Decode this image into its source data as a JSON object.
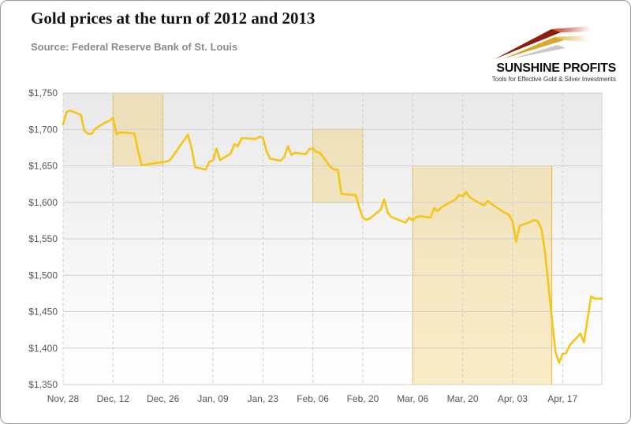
{
  "header": {
    "title": "Gold prices at the turn of 2012 and 2013",
    "subtitle": "Source: Federal Reserve Bank of St. Louis"
  },
  "logo": {
    "name": "SUNSHINE PROFITS",
    "tagline": "Tools for Effective Gold & Silver Investments"
  },
  "colors": {
    "line": "#F5C518",
    "highlight_fill": "#F2CD6A",
    "highlight_border": "#E9B92B",
    "grid": "#CFCFCF",
    "axis_text": "#555555"
  },
  "chart_data": {
    "type": "line",
    "title": "Gold prices at the turn of 2012 and 2013",
    "subtitle": "Source: Federal Reserve Bank of St. Louis",
    "xlabel": "",
    "ylabel": "",
    "ylim": [
      1350,
      1750
    ],
    "yticks": [
      1350,
      1400,
      1450,
      1500,
      1550,
      1600,
      1650,
      1700,
      1750
    ],
    "ytick_labels": [
      "$1,350",
      "$1,400",
      "$1,450",
      "$1,500",
      "$1,550",
      "$1,600",
      "$1,650",
      "$1,700",
      "$1,750"
    ],
    "xlim": [
      "2012-11-28",
      "2013-04-28"
    ],
    "xticks": [
      "2012-11-28",
      "2012-12-12",
      "2012-12-26",
      "2013-01-09",
      "2013-01-23",
      "2013-02-06",
      "2013-02-20",
      "2013-03-06",
      "2013-03-20",
      "2013-04-03",
      "2013-04-17"
    ],
    "xtick_labels": [
      "Nov, 28",
      "Dec, 12",
      "Dec, 26",
      "Jan, 09",
      "Jan, 23",
      "Feb, 06",
      "Feb, 20",
      "Mar, 06",
      "Mar, 20",
      "Apr, 03",
      "Apr, 17"
    ],
    "grid": true,
    "legend": "none",
    "highlights": [
      {
        "x_start": "2012-12-12",
        "x_end": "2012-12-26",
        "y_low": 1650,
        "y_high": 1750
      },
      {
        "x_start": "2013-02-06",
        "x_end": "2013-02-20",
        "y_low": 1600,
        "y_high": 1700
      },
      {
        "x_start": "2013-03-06",
        "x_end": "2013-04-14",
        "y_low": 1350,
        "y_high": 1650
      }
    ],
    "series": [
      {
        "points": [
          [
            "2012-11-28",
            1707
          ],
          [
            "2012-11-29",
            1724
          ],
          [
            "2012-11-30",
            1726
          ],
          [
            "2012-12-03",
            1720
          ],
          [
            "2012-12-04",
            1698
          ],
          [
            "2012-12-05",
            1694
          ],
          [
            "2012-12-06",
            1694
          ],
          [
            "2012-12-07",
            1701
          ],
          [
            "2012-12-10",
            1710
          ],
          [
            "2012-12-11",
            1712
          ],
          [
            "2012-12-12",
            1716
          ],
          [
            "2012-12-13",
            1693
          ],
          [
            "2012-12-14",
            1696
          ],
          [
            "2012-12-17",
            1695
          ],
          [
            "2012-12-18",
            1694
          ],
          [
            "2012-12-19",
            1671
          ],
          [
            "2012-12-20",
            1651
          ],
          [
            "2012-12-27",
            1656
          ],
          [
            "2012-12-28",
            1658
          ],
          [
            "2013-01-02",
            1693
          ],
          [
            "2013-01-03",
            1675
          ],
          [
            "2013-01-04",
            1648
          ],
          [
            "2013-01-07",
            1645
          ],
          [
            "2013-01-08",
            1656
          ],
          [
            "2013-01-09",
            1657
          ],
          [
            "2013-01-10",
            1674
          ],
          [
            "2013-01-11",
            1658
          ],
          [
            "2013-01-14",
            1667
          ],
          [
            "2013-01-15",
            1680
          ],
          [
            "2013-01-16",
            1677
          ],
          [
            "2013-01-17",
            1688
          ],
          [
            "2013-01-18",
            1688
          ],
          [
            "2013-01-21",
            1687
          ],
          [
            "2013-01-22",
            1690
          ],
          [
            "2013-01-23",
            1689
          ],
          [
            "2013-01-24",
            1671
          ],
          [
            "2013-01-25",
            1660
          ],
          [
            "2013-01-28",
            1657
          ],
          [
            "2013-01-29",
            1662
          ],
          [
            "2013-01-30",
            1677
          ],
          [
            "2013-01-31",
            1665
          ],
          [
            "2013-02-01",
            1668
          ],
          [
            "2013-02-04",
            1666
          ],
          [
            "2013-02-05",
            1673
          ],
          [
            "2013-02-06",
            1674
          ],
          [
            "2013-02-07",
            1669
          ],
          [
            "2013-02-08",
            1668
          ],
          [
            "2013-02-11",
            1648
          ],
          [
            "2013-02-12",
            1645
          ],
          [
            "2013-02-13",
            1645
          ],
          [
            "2013-02-14",
            1612
          ],
          [
            "2013-02-15",
            1611
          ],
          [
            "2013-02-18",
            1610
          ],
          [
            "2013-02-19",
            1593
          ],
          [
            "2013-02-20",
            1579
          ],
          [
            "2013-02-21",
            1576
          ],
          [
            "2013-02-22",
            1578
          ],
          [
            "2013-02-25",
            1590
          ],
          [
            "2013-02-26",
            1604
          ],
          [
            "2013-02-27",
            1586
          ],
          [
            "2013-02-28",
            1580
          ],
          [
            "2013-03-01",
            1578
          ],
          [
            "2013-03-04",
            1572
          ],
          [
            "2013-03-05",
            1579
          ],
          [
            "2013-03-06",
            1575
          ],
          [
            "2013-03-07",
            1580
          ],
          [
            "2013-03-08",
            1581
          ],
          [
            "2013-03-11",
            1579
          ],
          [
            "2013-03-12",
            1592
          ],
          [
            "2013-03-13",
            1588
          ],
          [
            "2013-03-14",
            1593
          ],
          [
            "2013-03-15",
            1596
          ],
          [
            "2013-03-18",
            1604
          ],
          [
            "2013-03-19",
            1610
          ],
          [
            "2013-03-20",
            1608
          ],
          [
            "2013-03-21",
            1614
          ],
          [
            "2013-03-22",
            1607
          ],
          [
            "2013-03-25",
            1598
          ],
          [
            "2013-03-26",
            1596
          ],
          [
            "2013-03-27",
            1602
          ],
          [
            "2013-03-28",
            1598
          ],
          [
            "2013-04-01",
            1585
          ],
          [
            "2013-04-02",
            1583
          ],
          [
            "2013-04-03",
            1574
          ],
          [
            "2013-04-04",
            1546
          ],
          [
            "2013-04-05",
            1568
          ],
          [
            "2013-04-08",
            1573
          ],
          [
            "2013-04-09",
            1576
          ],
          [
            "2013-04-10",
            1574
          ],
          [
            "2013-04-11",
            1565
          ],
          [
            "2013-04-12",
            1535
          ],
          [
            "2013-04-15",
            1395
          ],
          [
            "2013-04-16",
            1380
          ],
          [
            "2013-04-17",
            1392
          ],
          [
            "2013-04-18",
            1393
          ],
          [
            "2013-04-19",
            1404
          ],
          [
            "2013-04-22",
            1420
          ],
          [
            "2013-04-23",
            1408
          ],
          [
            "2013-04-25",
            1471
          ],
          [
            "2013-04-26",
            1468
          ],
          [
            "2013-04-28",
            1468
          ]
        ]
      }
    ]
  }
}
